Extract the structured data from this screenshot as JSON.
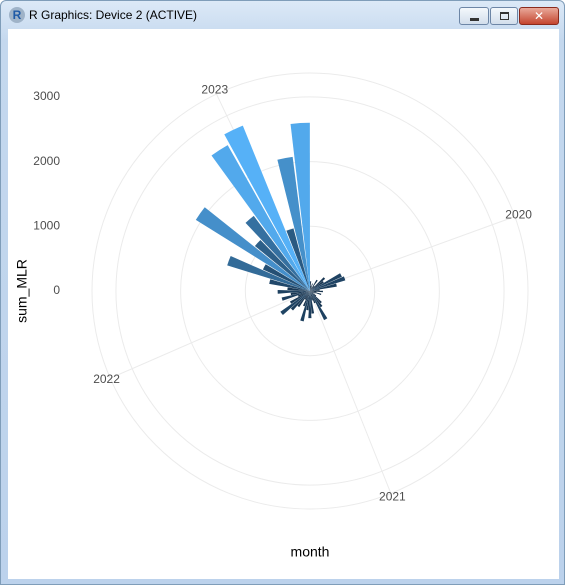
{
  "window": {
    "title": "R Graphics: Device 2 (ACTIVE)",
    "icon_label": "R"
  },
  "chart_data": {
    "type": "polar_bar",
    "x_label": "month",
    "y_label": "sum_MLR",
    "x": [
      2019.25,
      2019.333,
      2019.417,
      2019.5,
      2019.583,
      2019.667,
      2019.75,
      2019.833,
      2019.917,
      2020.0,
      2020.083,
      2020.167,
      2020.25,
      2020.333,
      2020.417,
      2020.5,
      2020.583,
      2020.667,
      2020.75,
      2020.833,
      2020.917,
      2021.0,
      2021.083,
      2021.167,
      2021.25,
      2021.333,
      2021.417,
      2021.5,
      2021.583,
      2021.667,
      2021.75,
      2021.833,
      2021.917,
      2022.0,
      2022.083,
      2022.167,
      2022.25,
      2022.333,
      2022.417,
      2022.5,
      2022.583,
      2022.667,
      2022.75,
      2022.833,
      2022.917,
      2023.0,
      2023.083,
      2023.167,
      2023.25
    ],
    "values": [
      150,
      80,
      120,
      60,
      200,
      100,
      300,
      250,
      540,
      570,
      420,
      150,
      200,
      100,
      180,
      90,
      60,
      120,
      250,
      300,
      500,
      200,
      150,
      350,
      420,
      300,
      480,
      250,
      150,
      300,
      400,
      560,
      350,
      200,
      450,
      300,
      500,
      350,
      640,
      1340,
      800,
      2080,
      1100,
      1450,
      2590,
      2760,
      1000,
      2090,
      2600
    ],
    "fill_scale": [
      "#132B43",
      "#56B1F7"
    ],
    "xlim": [
      2019.206,
      2023.288
    ],
    "xticks": [
      2020,
      2021,
      2022,
      2023
    ],
    "ylim": [
      0,
      3370
    ],
    "yticks": [
      0,
      1000,
      2000,
      3000
    ],
    "grid": true
  }
}
